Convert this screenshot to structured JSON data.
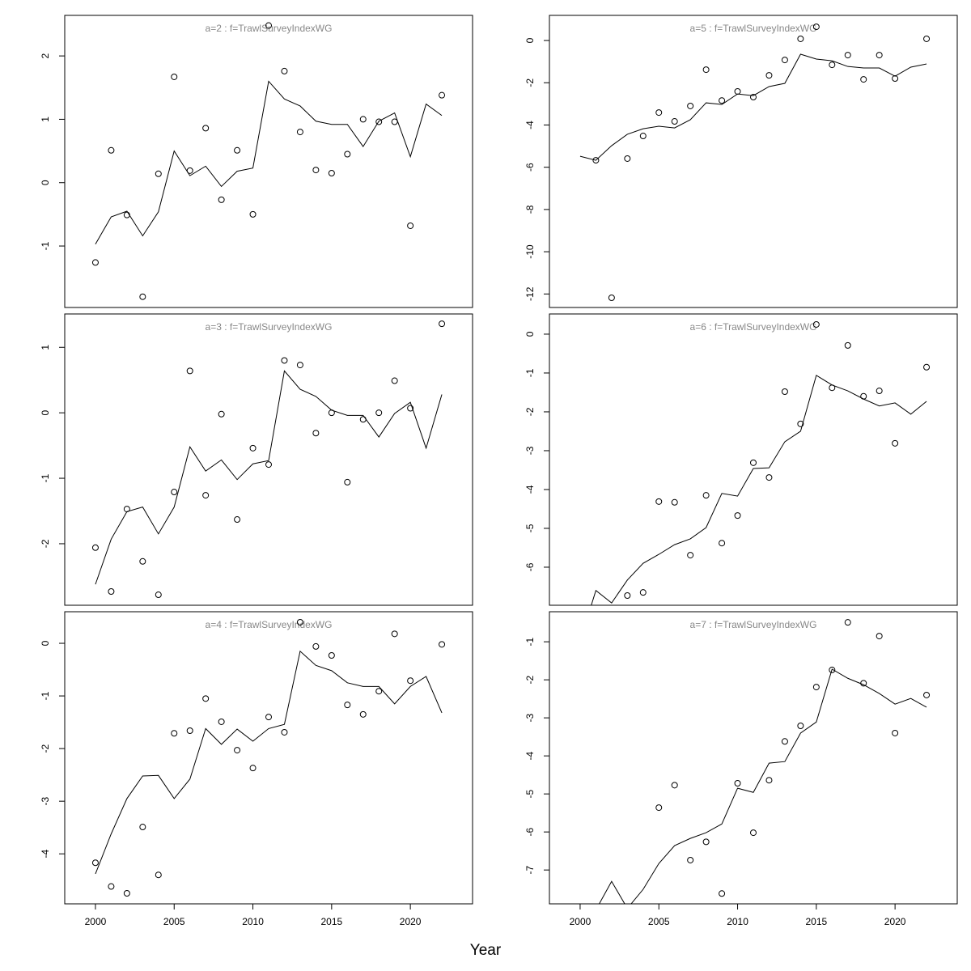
{
  "chart_data": [
    {
      "type": "line",
      "title": "a=2  :  f=TrawlSurveyIndexWG",
      "x": [
        2000,
        2001,
        2002,
        2003,
        2004,
        2005,
        2006,
        2007,
        2008,
        2009,
        2010,
        2011,
        2012,
        2013,
        2014,
        2015,
        2016,
        2017,
        2018,
        2019,
        2020,
        2021,
        2022
      ],
      "series": [
        {
          "mode": "line",
          "color": "#000000",
          "values": [
            -0.97,
            -0.54,
            -0.45,
            -0.84,
            -0.46,
            0.5,
            0.11,
            0.26,
            -0.06,
            0.18,
            0.23,
            1.6,
            1.32,
            1.21,
            0.97,
            0.92,
            0.92,
            0.57,
            0.97,
            1.1,
            0.41,
            1.24,
            1.06
          ]
        },
        {
          "mode": "points",
          "color": "#000000",
          "values": [
            -1.26,
            0.51,
            -0.51,
            -1.8,
            0.14,
            1.67,
            0.19,
            0.86,
            -0.27,
            0.51,
            -0.5,
            2.48,
            1.76,
            0.8,
            0.2,
            0.15,
            0.45,
            1.0,
            0.96,
            0.96,
            -0.68,
            null,
            1.38
          ]
        }
      ],
      "xlim": [
        1998.05,
        2023.95
      ],
      "ylim": [
        -1.97,
        2.64
      ],
      "yticks": [
        -1,
        0,
        1,
        2
      ]
    },
    {
      "type": "line",
      "title": "a=5  :  f=TrawlSurveyIndexWG",
      "x": [
        2000,
        2001,
        2002,
        2003,
        2004,
        2005,
        2006,
        2007,
        2008,
        2009,
        2010,
        2011,
        2012,
        2013,
        2014,
        2015,
        2016,
        2017,
        2018,
        2019,
        2020,
        2021,
        2022
      ],
      "series": [
        {
          "mode": "line",
          "color": "#000000",
          "values": [
            -5.48,
            -5.67,
            -4.98,
            -4.44,
            -4.18,
            -4.06,
            -4.14,
            -3.75,
            -2.95,
            -3.03,
            -2.53,
            -2.61,
            -2.18,
            -2.03,
            -0.65,
            -0.88,
            -0.96,
            -1.23,
            -1.3,
            -1.3,
            -1.69,
            -1.26,
            -1.11
          ]
        },
        {
          "mode": "points",
          "color": "#000000",
          "values": [
            null,
            -5.67,
            -12.18,
            -5.59,
            -4.52,
            -3.41,
            -3.83,
            -3.1,
            -1.38,
            -2.84,
            -2.41,
            -2.68,
            -1.65,
            -0.92,
            0.08,
            0.65,
            -1.15,
            -0.69,
            -1.84,
            -0.69,
            -1.8,
            null,
            0.08
          ]
        }
      ],
      "xlim": [
        1998.05,
        2023.95
      ],
      "ylim": [
        -12.64,
        1.19
      ],
      "yticks": [
        -12,
        -10,
        -8,
        -6,
        -4,
        -2,
        0
      ]
    },
    {
      "type": "line",
      "title": "a=3  :  f=TrawlSurveyIndexWG",
      "x": [
        2000,
        2001,
        2002,
        2003,
        2004,
        2005,
        2006,
        2007,
        2008,
        2009,
        2010,
        2011,
        2012,
        2013,
        2014,
        2015,
        2016,
        2017,
        2018,
        2019,
        2020,
        2021,
        2022
      ],
      "series": [
        {
          "mode": "line",
          "color": "#000000",
          "values": [
            -2.62,
            -1.93,
            -1.51,
            -1.44,
            -1.85,
            -1.44,
            -0.52,
            -0.89,
            -0.72,
            -1.02,
            -0.78,
            -0.73,
            0.64,
            0.36,
            0.25,
            0.04,
            -0.04,
            -0.04,
            -0.37,
            -0.01,
            0.16,
            -0.54,
            0.28
          ]
        },
        {
          "mode": "points",
          "color": "#000000",
          "values": [
            -2.06,
            -2.73,
            -1.47,
            -2.27,
            -2.78,
            -1.21,
            0.64,
            -1.26,
            -0.02,
            -1.63,
            -0.54,
            -0.79,
            0.8,
            0.73,
            -0.31,
            0.0,
            -1.06,
            -0.1,
            0.0,
            0.49,
            0.07,
            null,
            1.36
          ]
        }
      ],
      "xlim": [
        1998.05,
        2023.95
      ],
      "ylim": [
        -2.94,
        1.51
      ],
      "yticks": [
        -2,
        -1,
        0,
        1
      ]
    },
    {
      "type": "line",
      "title": "a=6  :  f=TrawlSurveyIndexWG",
      "x": [
        2000,
        2001,
        2002,
        2003,
        2004,
        2005,
        2006,
        2007,
        2008,
        2009,
        2010,
        2011,
        2012,
        2013,
        2014,
        2015,
        2016,
        2017,
        2018,
        2019,
        2020,
        2021,
        2022
      ],
      "series": [
        {
          "mode": "line",
          "color": "#000000",
          "values": [
            -7.9,
            -6.6,
            -6.92,
            -6.33,
            -5.9,
            -5.67,
            -5.42,
            -5.27,
            -4.98,
            -4.1,
            -4.17,
            -3.46,
            -3.44,
            -2.77,
            -2.5,
            -1.06,
            -1.31,
            -1.46,
            -1.67,
            -1.85,
            -1.77,
            -2.06,
            -1.73
          ]
        },
        {
          "mode": "points",
          "color": "#000000",
          "values": [
            null,
            null,
            null,
            -6.73,
            -6.65,
            -4.31,
            -4.33,
            -5.69,
            -4.15,
            -5.38,
            -4.67,
            -3.31,
            -3.69,
            -1.48,
            -2.31,
            0.25,
            -1.38,
            -0.29,
            -1.6,
            -1.46,
            -2.81,
            null,
            -0.85
          ]
        }
      ],
      "xlim": [
        1998.05,
        2023.95
      ],
      "ylim": [
        -6.98,
        0.52
      ],
      "yticks": [
        -6,
        -5,
        -4,
        -3,
        -2,
        -1,
        0
      ]
    },
    {
      "type": "line",
      "title": "a=4  :  f=TrawlSurveyIndexWG",
      "x": [
        2000,
        2001,
        2002,
        2003,
        2004,
        2005,
        2006,
        2007,
        2008,
        2009,
        2010,
        2011,
        2012,
        2013,
        2014,
        2015,
        2016,
        2017,
        2018,
        2019,
        2020,
        2021,
        2022
      ],
      "series": [
        {
          "mode": "line",
          "color": "#000000",
          "values": [
            -4.38,
            -3.62,
            -2.95,
            -2.52,
            -2.51,
            -2.95,
            -2.58,
            -1.62,
            -1.92,
            -1.63,
            -1.86,
            -1.62,
            -1.54,
            -0.15,
            -0.42,
            -0.52,
            -0.75,
            -0.82,
            -0.82,
            -1.15,
            -0.82,
            -0.63,
            -1.32
          ]
        },
        {
          "mode": "points",
          "color": "#000000",
          "values": [
            -4.17,
            -4.62,
            -4.75,
            -3.49,
            -4.4,
            -1.71,
            -1.66,
            -1.05,
            -1.49,
            -2.03,
            -2.37,
            -1.4,
            -1.69,
            0.4,
            -0.06,
            -0.23,
            -1.17,
            -1.35,
            -0.91,
            0.18,
            -0.71,
            null,
            -0.02
          ]
        }
      ],
      "xlim": [
        1998.05,
        2023.95
      ],
      "ylim": [
        -4.95,
        0.6
      ],
      "yticks": [
        -4,
        -3,
        -2,
        -1,
        0
      ],
      "xticks": [
        2000,
        2005,
        2010,
        2015,
        2020
      ]
    },
    {
      "type": "line",
      "title": "a=7  :  f=TrawlSurveyIndexWG",
      "x": [
        2000,
        2001,
        2002,
        2003,
        2004,
        2005,
        2006,
        2007,
        2008,
        2009,
        2010,
        2011,
        2012,
        2013,
        2014,
        2015,
        2016,
        2017,
        2018,
        2019,
        2020,
        2021,
        2022
      ],
      "series": [
        {
          "mode": "line",
          "color": "#000000",
          "values": [
            -8.5,
            -8.05,
            -7.3,
            -8.01,
            -7.51,
            -6.83,
            -6.36,
            -6.17,
            -6.02,
            -5.79,
            -4.85,
            -4.96,
            -4.19,
            -4.15,
            -3.4,
            -3.11,
            -1.72,
            -1.96,
            -2.13,
            -2.36,
            -2.64,
            -2.49,
            -2.72
          ]
        },
        {
          "mode": "points",
          "color": "#000000",
          "values": [
            null,
            null,
            null,
            null,
            null,
            -5.36,
            -4.77,
            -6.74,
            -6.26,
            -7.62,
            -4.72,
            -6.02,
            -4.64,
            -3.62,
            -3.21,
            -2.19,
            -1.74,
            -0.49,
            -2.09,
            -0.85,
            -3.4,
            null,
            -2.4
          ]
        }
      ],
      "xlim": [
        1998.05,
        2023.95
      ],
      "ylim": [
        -7.89,
        -0.21
      ],
      "yticks": [
        -7,
        -6,
        -5,
        -4,
        -3,
        -2,
        -1
      ],
      "xticks": [
        2000,
        2005,
        2010,
        2015,
        2020
      ]
    }
  ],
  "xlabel": "Year"
}
